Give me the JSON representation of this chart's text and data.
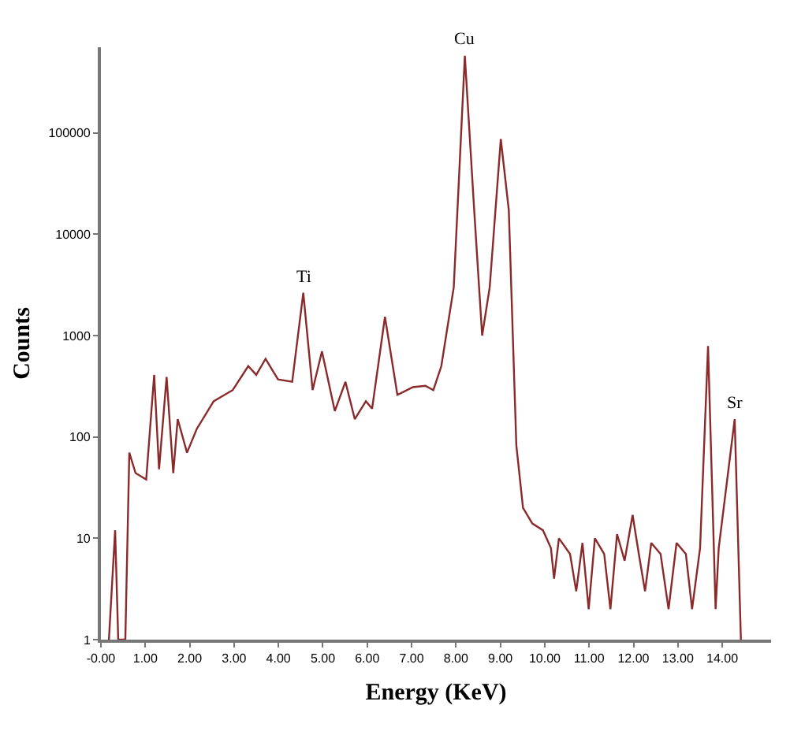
{
  "chart_data": {
    "type": "line",
    "xlabel": "Energy (KeV)",
    "ylabel": "Counts",
    "log": "y",
    "marker": "none",
    "line_style": "solid",
    "xlim": [
      0,
      15.1
    ],
    "ylim": [
      1,
      700000
    ],
    "xticks": [
      {
        "value": 0,
        "label": "-0.00"
      },
      {
        "value": 1,
        "label": "1.00"
      },
      {
        "value": 2,
        "label": "2.00"
      },
      {
        "value": 3,
        "label": "3.00"
      },
      {
        "value": 4,
        "label": "4.00"
      },
      {
        "value": 5,
        "label": "5.00"
      },
      {
        "value": 6,
        "label": "6.00"
      },
      {
        "value": 7,
        "label": "7.00"
      },
      {
        "value": 8,
        "label": "8.00"
      },
      {
        "value": 9,
        "label": "9.00"
      },
      {
        "value": 10,
        "label": "10.00"
      },
      {
        "value": 11,
        "label": "11.00"
      },
      {
        "value": 12,
        "label": "12.00"
      },
      {
        "value": 13,
        "label": "13.00"
      },
      {
        "value": 14,
        "label": "14.00"
      }
    ],
    "yticks": [
      1,
      10,
      100,
      1000,
      10000,
      100000
    ],
    "annotations": [
      {
        "text": "Ti",
        "x": 4.56,
        "y": 2650
      },
      {
        "text": "Cu",
        "x": 8.2,
        "y": 576000
      },
      {
        "text": "Sr",
        "x": 14.28,
        "y": 150
      }
    ],
    "series": [
      {
        "color": "#8b2a2a",
        "x": [
          0.18,
          0.32,
          0.39,
          0.55,
          0.64,
          0.78,
          1.02,
          1.2,
          1.31,
          1.48,
          1.63,
          1.73,
          1.94,
          2.16,
          2.54,
          2.97,
          3.32,
          3.5,
          3.71,
          3.99,
          4.31,
          4.56,
          4.77,
          4.98,
          5.27,
          5.51,
          5.72,
          5.97,
          6.11,
          6.4,
          6.68,
          7.03,
          7.31,
          7.49,
          7.67,
          7.95,
          8.2,
          8.41,
          8.59,
          8.76,
          9.01,
          9.19,
          9.36,
          9.51,
          9.72,
          9.96,
          10.14,
          10.21,
          10.32,
          10.57,
          10.71,
          10.85,
          10.99,
          11.13,
          11.34,
          11.48,
          11.63,
          11.8,
          11.98,
          12.12,
          12.26,
          12.4,
          12.61,
          12.79,
          12.97,
          13.18,
          13.32,
          13.5,
          13.68,
          13.85,
          13.92,
          14.28,
          14.42
        ],
        "values": [
          1,
          12,
          1,
          1,
          70,
          44,
          38,
          410,
          48,
          390,
          44,
          150,
          70,
          120,
          225,
          290,
          500,
          410,
          590,
          370,
          350,
          2650,
          290,
          700,
          180,
          350,
          150,
          225,
          190,
          1530,
          260,
          310,
          320,
          290,
          500,
          3000,
          576000,
          17400,
          1000,
          3000,
          87000,
          17400,
          83,
          20,
          14,
          12,
          8,
          4,
          10,
          7,
          3,
          9,
          2,
          10,
          7,
          2,
          11,
          6,
          17,
          7,
          3,
          9,
          7,
          2,
          9,
          7,
          2,
          8,
          790,
          2,
          8,
          150,
          1
        ]
      }
    ]
  }
}
